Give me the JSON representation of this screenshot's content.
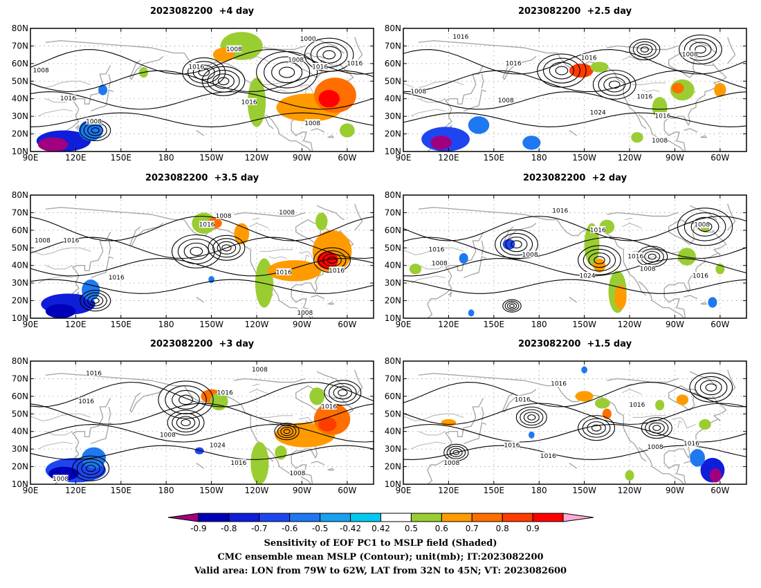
{
  "panels": [
    {
      "title": "2023082200  +4 day",
      "shading": [
        {
          "kind": "neg",
          "lon": 112,
          "lat": 16,
          "rx": 18,
          "ry": 6,
          "v": -0.7
        },
        {
          "kind": "neg",
          "lon": 105,
          "lat": 14,
          "rx": 10,
          "ry": 4,
          "v": -0.9
        },
        {
          "kind": "neg",
          "lon": 130,
          "lat": 22,
          "rx": 8,
          "ry": 6,
          "v": -0.5
        },
        {
          "kind": "neg",
          "lon": 138,
          "lat": 45,
          "rx": 3,
          "ry": 3,
          "v": -0.5
        },
        {
          "kind": "pos",
          "lon": -130,
          "lat": 70,
          "rx": 14,
          "ry": 8,
          "v": 0.5
        },
        {
          "kind": "pos",
          "lon": -142,
          "lat": 65,
          "rx": 7,
          "ry": 4,
          "v": 0.6
        },
        {
          "kind": "pos",
          "lon": -120,
          "lat": 38,
          "rx": 6,
          "ry": 14,
          "v": 0.5
        },
        {
          "kind": "pos",
          "lon": -85,
          "lat": 35,
          "rx": 22,
          "ry": 8,
          "v": 0.6
        },
        {
          "kind": "pos",
          "lon": -68,
          "lat": 42,
          "rx": 14,
          "ry": 10,
          "v": 0.7
        },
        {
          "kind": "pos",
          "lon": -72,
          "lat": 40,
          "rx": 7,
          "ry": 5,
          "v": 0.9
        },
        {
          "kind": "pos",
          "lon": -60,
          "lat": 22,
          "rx": 5,
          "ry": 4,
          "v": 0.5
        },
        {
          "kind": "pos",
          "lon": 165,
          "lat": 55,
          "rx": 3,
          "ry": 3,
          "v": 0.5
        }
      ],
      "lows": [
        [
          -155,
          55,
          0.7
        ],
        [
          -142,
          50,
          0.7
        ],
        [
          -100,
          55,
          1.0
        ],
        [
          -72,
          65,
          0.8
        ],
        [
          133,
          22,
          0.5
        ]
      ],
      "labels": [
        {
          "text": "1008",
          "lon": 97,
          "lat": 56
        },
        {
          "text": "1016",
          "lon": 115,
          "lat": 40
        },
        {
          "text": "1008",
          "lon": 132,
          "lat": 27
        },
        {
          "text": "1008",
          "lon": -135,
          "lat": 68
        },
        {
          "text": "1016",
          "lon": -160,
          "lat": 58
        },
        {
          "text": "1000",
          "lon": -86,
          "lat": 74
        },
        {
          "text": "1008",
          "lon": -94,
          "lat": 62
        },
        {
          "text": "1016",
          "lon": -78,
          "lat": 58
        },
        {
          "text": "1016",
          "lon": -55,
          "lat": 60
        },
        {
          "text": "1016",
          "lon": -125,
          "lat": 38
        },
        {
          "text": "1008",
          "lon": -83,
          "lat": 26
        }
      ]
    },
    {
      "title": "2023082200  +2.5 day",
      "shading": [
        {
          "kind": "neg",
          "lon": 118,
          "lat": 17,
          "rx": 16,
          "ry": 7,
          "v": -0.6
        },
        {
          "kind": "neg",
          "lon": 115,
          "lat": 15,
          "rx": 7,
          "ry": 4,
          "v": -0.9
        },
        {
          "kind": "neg",
          "lon": 140,
          "lat": 25,
          "rx": 7,
          "ry": 5,
          "v": -0.5
        },
        {
          "kind": "neg",
          "lon": 175,
          "lat": 15,
          "rx": 6,
          "ry": 4,
          "v": -0.5
        },
        {
          "kind": "pos",
          "lon": -152,
          "lat": 56,
          "rx": 8,
          "ry": 4,
          "v": 0.8
        },
        {
          "kind": "pos",
          "lon": -140,
          "lat": 58,
          "rx": 6,
          "ry": 3,
          "v": 0.5
        },
        {
          "kind": "pos",
          "lon": -100,
          "lat": 35,
          "rx": 5,
          "ry": 6,
          "v": 0.5
        },
        {
          "kind": "pos",
          "lon": -85,
          "lat": 45,
          "rx": 8,
          "ry": 6,
          "v": 0.5
        },
        {
          "kind": "pos",
          "lon": -88,
          "lat": 46,
          "rx": 4,
          "ry": 3,
          "v": 0.7
        },
        {
          "kind": "pos",
          "lon": -60,
          "lat": 45,
          "rx": 4,
          "ry": 4,
          "v": 0.6
        },
        {
          "kind": "pos",
          "lon": -115,
          "lat": 18,
          "rx": 4,
          "ry": 3,
          "v": 0.5
        }
      ],
      "lows": [
        [
          -165,
          56,
          0.8
        ],
        [
          -130,
          48,
          0.7
        ],
        [
          -73,
          68,
          0.7
        ],
        [
          -110,
          68,
          0.5
        ]
      ],
      "labels": [
        {
          "text": "1016",
          "lon": 128,
          "lat": 75
        },
        {
          "text": "1016",
          "lon": 163,
          "lat": 60
        },
        {
          "text": "1016",
          "lon": -147,
          "lat": 63
        },
        {
          "text": "1008",
          "lon": 100,
          "lat": 44
        },
        {
          "text": "1008",
          "lon": 158,
          "lat": 39
        },
        {
          "text": "1024",
          "lon": -141,
          "lat": 32
        },
        {
          "text": "1016",
          "lon": -110,
          "lat": 41
        },
        {
          "text": "1016",
          "lon": -98,
          "lat": 30
        },
        {
          "text": "1008",
          "lon": -100,
          "lat": 16
        },
        {
          "text": "1008",
          "lon": -80,
          "lat": 65
        }
      ]
    },
    {
      "title": "2023082200  +3.5 day",
      "shading": [
        {
          "kind": "neg",
          "lon": 115,
          "lat": 18,
          "rx": 18,
          "ry": 6,
          "v": -0.7
        },
        {
          "kind": "neg",
          "lon": 110,
          "lat": 14,
          "rx": 10,
          "ry": 4,
          "v": -0.8
        },
        {
          "kind": "neg",
          "lon": 130,
          "lat": 26,
          "rx": 6,
          "ry": 6,
          "v": -0.5
        },
        {
          "kind": "neg",
          "lon": -150,
          "lat": 32,
          "rx": 2,
          "ry": 2,
          "v": -0.5
        },
        {
          "kind": "pos",
          "lon": -155,
          "lat": 64,
          "rx": 8,
          "ry": 6,
          "v": 0.5
        },
        {
          "kind": "pos",
          "lon": -148,
          "lat": 64,
          "rx": 5,
          "ry": 3,
          "v": 0.7
        },
        {
          "kind": "pos",
          "lon": -130,
          "lat": 58,
          "rx": 5,
          "ry": 6,
          "v": 0.6
        },
        {
          "kind": "pos",
          "lon": -115,
          "lat": 30,
          "rx": 6,
          "ry": 14,
          "v": 0.5
        },
        {
          "kind": "pos",
          "lon": -95,
          "lat": 37,
          "rx": 18,
          "ry": 6,
          "v": 0.6
        },
        {
          "kind": "pos",
          "lon": -70,
          "lat": 48,
          "rx": 13,
          "ry": 12,
          "v": 0.6
        },
        {
          "kind": "pos",
          "lon": -73,
          "lat": 43,
          "rx": 7,
          "ry": 5,
          "v": 0.9
        },
        {
          "kind": "pos",
          "lon": -77,
          "lat": 65,
          "rx": 4,
          "ry": 5,
          "v": 0.5
        }
      ],
      "lows": [
        [
          -160,
          48,
          0.8
        ],
        [
          -140,
          50,
          0.6
        ],
        [
          -70,
          43,
          0.6
        ],
        [
          133,
          20,
          0.5
        ]
      ],
      "labels": [
        {
          "text": "1008",
          "lon": 98,
          "lat": 54
        },
        {
          "text": "1016",
          "lon": 117,
          "lat": 54
        },
        {
          "text": "1016",
          "lon": 147,
          "lat": 33
        },
        {
          "text": "1008",
          "lon": -142,
          "lat": 68
        },
        {
          "text": "1016",
          "lon": -153,
          "lat": 63
        },
        {
          "text": "1008",
          "lon": -100,
          "lat": 70
        },
        {
          "text": "1016",
          "lon": -102,
          "lat": 36
        },
        {
          "text": "1016",
          "lon": -67,
          "lat": 37
        },
        {
          "text": "1008",
          "lon": -88,
          "lat": 13
        }
      ]
    },
    {
      "title": "2023082200  +2 day",
      "shading": [
        {
          "kind": "neg",
          "lon": 160,
          "lat": 52,
          "rx": 4,
          "ry": 3,
          "v": -0.6
        },
        {
          "kind": "neg",
          "lon": 130,
          "lat": 44,
          "rx": 3,
          "ry": 3,
          "v": -0.5
        },
        {
          "kind": "neg",
          "lon": -65,
          "lat": 19,
          "rx": 3,
          "ry": 3,
          "v": -0.5
        },
        {
          "kind": "neg",
          "lon": 135,
          "lat": 13,
          "rx": 2,
          "ry": 2,
          "v": -0.5
        },
        {
          "kind": "pos",
          "lon": -145,
          "lat": 52,
          "rx": 5,
          "ry": 12,
          "v": 0.5
        },
        {
          "kind": "pos",
          "lon": -128,
          "lat": 25,
          "rx": 6,
          "ry": 12,
          "v": 0.5
        },
        {
          "kind": "pos",
          "lon": -126,
          "lat": 22,
          "rx": 4,
          "ry": 7,
          "v": 0.6
        },
        {
          "kind": "pos",
          "lon": -140,
          "lat": 40,
          "rx": 4,
          "ry": 4,
          "v": 0.6
        },
        {
          "kind": "pos",
          "lon": -82,
          "lat": 45,
          "rx": 6,
          "ry": 5,
          "v": 0.5
        },
        {
          "kind": "pos",
          "lon": -135,
          "lat": 62,
          "rx": 5,
          "ry": 4,
          "v": 0.5
        },
        {
          "kind": "pos",
          "lon": 98,
          "lat": 38,
          "rx": 4,
          "ry": 3,
          "v": 0.5
        },
        {
          "kind": "pos",
          "lon": -70,
          "lat": 62,
          "rx": 3,
          "ry": 3,
          "v": 0.5
        },
        {
          "kind": "pos",
          "lon": -60,
          "lat": 38,
          "rx": 3,
          "ry": 3,
          "v": 0.5
        }
      ],
      "lows": [
        [
          165,
          52,
          0.7
        ],
        [
          -140,
          43,
          0.7
        ],
        [
          -70,
          62,
          0.9
        ],
        [
          -105,
          45,
          0.5
        ],
        [
          162,
          17,
          0.3
        ]
      ],
      "labels": [
        {
          "text": "1016",
          "lon": -166,
          "lat": 71
        },
        {
          "text": "1016",
          "lon": -141,
          "lat": 60
        },
        {
          "text": "1016",
          "lon": 112,
          "lat": 49
        },
        {
          "text": "1008",
          "lon": 114,
          "lat": 41
        },
        {
          "text": "1008",
          "lon": 174,
          "lat": 46
        },
        {
          "text": "1024",
          "lon": -148,
          "lat": 34
        },
        {
          "text": "1016",
          "lon": -116,
          "lat": 45
        },
        {
          "text": "1008",
          "lon": -108,
          "lat": 38
        },
        {
          "text": "1016",
          "lon": -73,
          "lat": 34
        },
        {
          "text": "1008",
          "lon": -72,
          "lat": 63
        }
      ]
    },
    {
      "title": "2023082200  +3 day",
      "shading": [
        {
          "kind": "neg",
          "lon": 120,
          "lat": 18,
          "rx": 20,
          "ry": 7,
          "v": -0.6
        },
        {
          "kind": "neg",
          "lon": 112,
          "lat": 16,
          "rx": 10,
          "ry": 4,
          "v": -0.8
        },
        {
          "kind": "neg",
          "lon": 132,
          "lat": 25,
          "rx": 8,
          "ry": 6,
          "v": -0.5
        },
        {
          "kind": "neg",
          "lon": -158,
          "lat": 29,
          "rx": 3,
          "ry": 2,
          "v": -0.6
        },
        {
          "kind": "pos",
          "lon": -150,
          "lat": 60,
          "rx": 7,
          "ry": 4,
          "v": 0.7
        },
        {
          "kind": "pos",
          "lon": -145,
          "lat": 57,
          "rx": 6,
          "ry": 5,
          "v": 0.5
        },
        {
          "kind": "pos",
          "lon": -118,
          "lat": 22,
          "rx": 6,
          "ry": 12,
          "v": 0.5
        },
        {
          "kind": "pos",
          "lon": -88,
          "lat": 38,
          "rx": 20,
          "ry": 7,
          "v": 0.6
        },
        {
          "kind": "pos",
          "lon": -70,
          "lat": 47,
          "rx": 12,
          "ry": 9,
          "v": 0.7
        },
        {
          "kind": "pos",
          "lon": -73,
          "lat": 44,
          "rx": 6,
          "ry": 4,
          "v": 0.8
        },
        {
          "kind": "pos",
          "lon": -80,
          "lat": 60,
          "rx": 5,
          "ry": 5,
          "v": 0.5
        },
        {
          "kind": "pos",
          "lon": -104,
          "lat": 28,
          "rx": 4,
          "ry": 4,
          "v": 0.5
        }
      ],
      "lows": [
        [
          -167,
          58,
          0.9
        ],
        [
          -167,
          45,
          0.6
        ],
        [
          -63,
          62,
          0.6
        ],
        [
          -100,
          40,
          0.4
        ],
        [
          130,
          19,
          0.6
        ]
      ],
      "labels": [
        {
          "text": "1016",
          "lon": 132,
          "lat": 73
        },
        {
          "text": "1016",
          "lon": 127,
          "lat": 57
        },
        {
          "text": "1008",
          "lon": -118,
          "lat": 75
        },
        {
          "text": "1016",
          "lon": -141,
          "lat": 62
        },
        {
          "text": "1008",
          "lon": -179,
          "lat": 38
        },
        {
          "text": "1024",
          "lon": -146,
          "lat": 32
        },
        {
          "text": "1016",
          "lon": -132,
          "lat": 22
        },
        {
          "text": "1016",
          "lon": -72,
          "lat": 54
        },
        {
          "text": "1008",
          "lon": -93,
          "lat": 16
        },
        {
          "text": "1008",
          "lon": 110,
          "lat": 13
        }
      ]
    },
    {
      "title": "2023082200  +1.5 day",
      "shading": [
        {
          "kind": "neg",
          "lon": -65,
          "lat": 18,
          "rx": 8,
          "ry": 7,
          "v": -0.7
        },
        {
          "kind": "neg",
          "lon": -63,
          "lat": 15,
          "rx": 4,
          "ry": 4,
          "v": -0.9
        },
        {
          "kind": "neg",
          "lon": -75,
          "lat": 25,
          "rx": 5,
          "ry": 5,
          "v": -0.5
        },
        {
          "kind": "neg",
          "lon": 175,
          "lat": 38,
          "rx": 2,
          "ry": 2,
          "v": -0.5
        },
        {
          "kind": "neg",
          "lon": -150,
          "lat": 75,
          "rx": 2,
          "ry": 2,
          "v": -0.5
        },
        {
          "kind": "pos",
          "lon": -150,
          "lat": 60,
          "rx": 6,
          "ry": 3,
          "v": 0.6
        },
        {
          "kind": "pos",
          "lon": -138,
          "lat": 56,
          "rx": 5,
          "ry": 3,
          "v": 0.5
        },
        {
          "kind": "pos",
          "lon": -135,
          "lat": 50,
          "rx": 3,
          "ry": 3,
          "v": 0.7
        },
        {
          "kind": "pos",
          "lon": 120,
          "lat": 45,
          "rx": 5,
          "ry": 2,
          "v": 0.6
        },
        {
          "kind": "pos",
          "lon": -85,
          "lat": 58,
          "rx": 4,
          "ry": 3,
          "v": 0.6
        },
        {
          "kind": "pos",
          "lon": -70,
          "lat": 44,
          "rx": 4,
          "ry": 3,
          "v": 0.5
        },
        {
          "kind": "pos",
          "lon": -100,
          "lat": 55,
          "rx": 3,
          "ry": 3,
          "v": 0.5
        },
        {
          "kind": "pos",
          "lon": -120,
          "lat": 15,
          "rx": 3,
          "ry": 3,
          "v": 0.5
        }
      ],
      "lows": [
        [
          -66,
          65,
          0.7
        ],
        [
          175,
          48,
          0.5
        ],
        [
          -142,
          42,
          0.6
        ],
        [
          -102,
          42,
          0.5
        ],
        [
          125,
          28,
          0.4
        ]
      ],
      "labels": [
        {
          "text": "1016",
          "lon": -167,
          "lat": 67
        },
        {
          "text": "1016",
          "lon": 169,
          "lat": 58
        },
        {
          "text": "1016",
          "lon": -115,
          "lat": 55
        },
        {
          "text": "1016",
          "lon": 162,
          "lat": 32
        },
        {
          "text": "1016",
          "lon": -174,
          "lat": 26
        },
        {
          "text": "1008",
          "lon": -103,
          "lat": 31
        },
        {
          "text": "1016",
          "lon": -79,
          "lat": 33
        },
        {
          "text": "1008",
          "lon": 122,
          "lat": 22
        }
      ]
    }
  ],
  "axes": {
    "lat_ticks": [
      "80N",
      "70N",
      "60N",
      "50N",
      "40N",
      "30N",
      "20N",
      "10N"
    ],
    "lon_ticks": [
      "90E",
      "120E",
      "150E",
      "180",
      "150W",
      "120W",
      "90W",
      "60W"
    ]
  },
  "colorbar": {
    "tick_labels": [
      "-0.9",
      "-0.8",
      "-0.7",
      "-0.6",
      "-0.5",
      "-0.42",
      "0.42",
      "0.5",
      "0.6",
      "0.7",
      "0.8",
      "0.9"
    ],
    "colors": [
      "#a0007f",
      "#0000b8",
      "#0f1ed8",
      "#1e46f0",
      "#1e78f0",
      "#19a0f0",
      "#00c8f0",
      "#ffffff",
      "#9acd32",
      "#ff9b00",
      "#ff6e00",
      "#ff3c00",
      "#ff0000",
      "#ffaad2"
    ]
  },
  "caption": [
    "Sensitivity of EOF PC1 to MSLP field (Shaded)",
    "CMC ensemble mean MSLP (Contour); unit(mb); IT:2023082200",
    "Valid area: LON from 79W to 62W, LAT from 32N to 45N; VT: 2023082600"
  ]
}
